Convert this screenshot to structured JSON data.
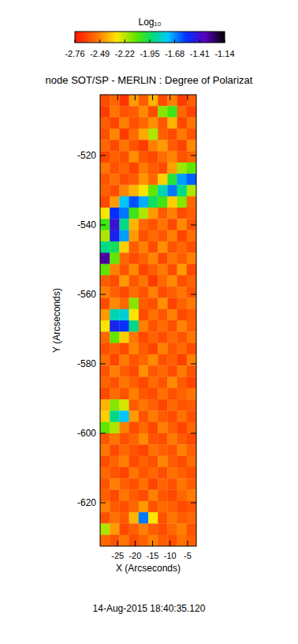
{
  "chart_data": {
    "type": "heatmap",
    "title": "node SOT/SP - MERLIN : Degree of Polarizat",
    "xlabel": "X (Arcseconds)",
    "ylabel": "Y (Arcseconds)",
    "date": "14-Aug-2015 18:40:35.120",
    "xlim": [
      -30,
      -2.5
    ],
    "ylim": [
      -632.5,
      -502.5
    ],
    "xticks": [
      -25,
      -20,
      -15,
      -10,
      -5
    ],
    "yticks": [
      -520,
      -540,
      -560,
      -580,
      -600,
      -620
    ],
    "x": [
      -28.625,
      -25.875,
      -23.125,
      -20.375,
      -17.625,
      -14.875,
      -12.125,
      -9.375,
      -6.625,
      -3.875
    ],
    "y": [
      -504.125,
      -507.375,
      -510.625,
      -513.875,
      -517.125,
      -520.375,
      -523.625,
      -526.875,
      -530.125,
      -533.375,
      -536.625,
      -539.875,
      -543.125,
      -546.375,
      -549.625,
      -552.875,
      -556.125,
      -559.375,
      -562.625,
      -565.875,
      -569.125,
      -572.375,
      -575.625,
      -578.875,
      -582.125,
      -585.375,
      -588.625,
      -591.875,
      -595.125,
      -598.375,
      -601.625,
      -604.875,
      -608.125,
      -611.375,
      -614.625,
      -617.875,
      -621.125,
      -624.375,
      -627.625,
      -630.875
    ],
    "values": [
      [
        -2.62,
        -2.55,
        -2.68,
        -2.45,
        -2.58,
        -2.4,
        -2.62,
        -2.5,
        -2.66,
        -2.57
      ],
      [
        -2.66,
        -2.52,
        -2.6,
        -2.58,
        -2.48,
        -2.62,
        -2.15,
        -2.05,
        -2.55,
        -2.64
      ],
      [
        -2.58,
        -2.64,
        -2.5,
        -2.61,
        -2.55,
        -2.47,
        -2.59,
        -2.4,
        -2.63,
        -2.52
      ],
      [
        -2.61,
        -2.49,
        -2.66,
        -2.54,
        -2.42,
        -2.2,
        -2.57,
        -2.62,
        -2.51,
        -2.6
      ],
      [
        -2.55,
        -2.63,
        -2.52,
        -2.6,
        -2.66,
        -2.5,
        -2.45,
        -2.58,
        -2.64,
        -2.48
      ],
      [
        -2.64,
        -2.57,
        -2.61,
        -2.47,
        -2.59,
        -2.63,
        -2.54,
        -2.49,
        -2.6,
        -2.56
      ],
      [
        -2.52,
        -2.6,
        -2.56,
        -2.64,
        -2.51,
        -2.58,
        -2.62,
        -2.44,
        -2.18,
        -2.1
      ],
      [
        -2.6,
        -2.53,
        -2.62,
        -2.58,
        -2.46,
        -2.55,
        -2.35,
        -2.0,
        -1.7,
        -1.62
      ],
      [
        -2.57,
        -2.62,
        -2.49,
        -2.4,
        -2.3,
        -2.1,
        -1.85,
        -1.65,
        -1.9,
        -2.2
      ],
      [
        -2.63,
        -2.45,
        -1.75,
        -1.6,
        -1.72,
        -1.95,
        -2.05,
        -2.35,
        -2.15,
        -2.55
      ],
      [
        -2.3,
        -1.55,
        -1.65,
        -2.05,
        -2.2,
        -2.45,
        -2.58,
        -2.5,
        -2.62,
        -2.57
      ],
      [
        -2.05,
        -1.42,
        -1.9,
        -2.4,
        -2.55,
        -2.6,
        -2.52,
        -2.63,
        -2.48,
        -2.6
      ],
      [
        -2.2,
        -1.5,
        -1.7,
        -2.45,
        -2.61,
        -2.54,
        -2.59,
        -2.5,
        -2.64,
        -2.53
      ],
      [
        -1.9,
        -1.95,
        -2.35,
        -2.58,
        -2.5,
        -2.62,
        -2.47,
        -2.6,
        -2.55,
        -2.61
      ],
      [
        -1.32,
        -2.1,
        -2.55,
        -2.62,
        -2.56,
        -2.49,
        -2.63,
        -2.52,
        -2.58,
        -2.5
      ],
      [
        -2.1,
        -2.5,
        -2.6,
        -2.48,
        -2.64,
        -2.57,
        -2.51,
        -2.62,
        -2.45,
        -2.63
      ],
      [
        -2.58,
        -2.62,
        -2.45,
        -2.59,
        -2.52,
        -2.66,
        -2.55,
        -2.48,
        -2.61,
        -2.56
      ],
      [
        -2.5,
        -2.57,
        -2.63,
        -2.54,
        -2.6,
        -2.5,
        -2.62,
        -2.57,
        -2.52,
        -2.6
      ],
      [
        -2.62,
        -2.48,
        -2.55,
        -2.15,
        -2.58,
        -2.61,
        -2.47,
        -2.64,
        -2.56,
        -2.51
      ],
      [
        -2.45,
        -1.85,
        -1.8,
        -2.3,
        -2.62,
        -2.53,
        -2.59,
        -2.5,
        -2.63,
        -2.58
      ],
      [
        -2.3,
        -1.5,
        -1.55,
        -1.9,
        -2.5,
        -2.6,
        -2.54,
        -2.61,
        -2.49,
        -2.57
      ],
      [
        -2.55,
        -2.1,
        -2.35,
        -2.52,
        -2.63,
        -2.56,
        -2.62,
        -2.55,
        -2.6,
        -2.52
      ],
      [
        -2.61,
        -2.57,
        -2.63,
        -2.49,
        -2.58,
        -2.64,
        -2.5,
        -2.59,
        -2.54,
        -2.62
      ],
      [
        -2.53,
        -2.64,
        -2.51,
        -2.6,
        -2.55,
        -2.48,
        -2.61,
        -2.57,
        -2.65,
        -2.5
      ],
      [
        -2.6,
        -2.5,
        -2.58,
        -2.63,
        -2.47,
        -2.59,
        -2.55,
        -2.62,
        -2.51,
        -2.6
      ],
      [
        -2.56,
        -2.61,
        -2.52,
        -2.57,
        -2.63,
        -2.54,
        -2.6,
        -2.48,
        -2.58,
        -2.64
      ],
      [
        -2.63,
        -2.54,
        -2.6,
        -2.5,
        -2.59,
        -2.62,
        -2.53,
        -2.61,
        -2.56,
        -2.52
      ],
      [
        -2.4,
        -2.15,
        -2.25,
        -2.58,
        -2.52,
        -2.57,
        -2.64,
        -2.55,
        -2.6,
        -2.58
      ],
      [
        -2.35,
        -1.9,
        -1.75,
        -2.45,
        -2.6,
        -2.51,
        -2.58,
        -2.62,
        -2.53,
        -2.61
      ],
      [
        -2.1,
        -2.2,
        -2.5,
        -2.62,
        -2.55,
        -2.63,
        -2.5,
        -2.57,
        -2.64,
        -2.55
      ],
      [
        -2.59,
        -2.52,
        -2.61,
        -2.56,
        -2.48,
        -2.6,
        -2.62,
        -2.51,
        -2.58,
        -2.63
      ],
      [
        -2.52,
        -2.63,
        -2.55,
        -2.6,
        -2.64,
        -2.53,
        -2.57,
        -2.6,
        -2.5,
        -2.57
      ],
      [
        -2.62,
        -2.56,
        -2.5,
        -2.63,
        -2.57,
        -2.61,
        -2.49,
        -2.58,
        -2.62,
        -2.54
      ],
      [
        -2.55,
        -2.6,
        -2.64,
        -2.52,
        -2.59,
        -2.55,
        -2.62,
        -2.53,
        -2.57,
        -2.61
      ],
      [
        -2.6,
        -2.5,
        -2.57,
        -2.61,
        -2.53,
        -2.64,
        -2.56,
        -2.6,
        -2.52,
        -2.58
      ],
      [
        -2.57,
        -2.63,
        -2.52,
        -2.58,
        -2.62,
        -2.5,
        -2.59,
        -2.63,
        -2.55,
        -2.51
      ],
      [
        -2.5,
        -2.58,
        -2.61,
        -2.55,
        -2.45,
        -2.6,
        -2.54,
        -2.57,
        -2.62,
        -2.59
      ],
      [
        -2.61,
        -2.53,
        -2.58,
        -2.4,
        -1.65,
        -2.3,
        -2.6,
        -2.52,
        -2.58,
        -2.55
      ],
      [
        -2.2,
        -2.45,
        -2.63,
        -2.57,
        -2.5,
        -2.58,
        -2.62,
        -2.55,
        -2.5,
        -2.6
      ],
      [
        -2.55,
        -2.6,
        -2.52,
        -2.62,
        -2.56,
        -2.5,
        -2.58,
        -2.61,
        -2.53,
        -2.57
      ]
    ],
    "colorbar": {
      "label": "Log₁₀",
      "range": [
        -2.76,
        -1.14
      ],
      "ticks": [
        -2.76,
        -2.49,
        -2.22,
        -1.95,
        -1.68,
        -1.41,
        -1.14
      ]
    }
  }
}
